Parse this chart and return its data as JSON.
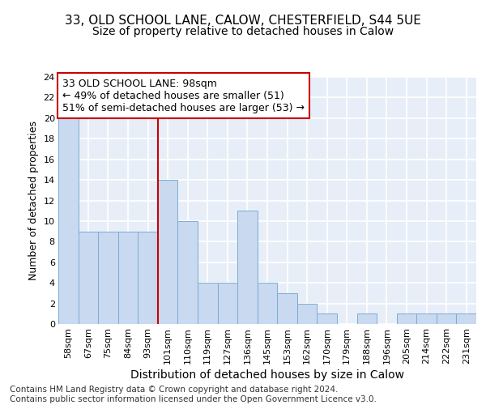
{
  "title1": "33, OLD SCHOOL LANE, CALOW, CHESTERFIELD, S44 5UE",
  "title2": "Size of property relative to detached houses in Calow",
  "xlabel": "Distribution of detached houses by size in Calow",
  "ylabel": "Number of detached properties",
  "categories": [
    "58sqm",
    "67sqm",
    "75sqm",
    "84sqm",
    "93sqm",
    "101sqm",
    "110sqm",
    "119sqm",
    "127sqm",
    "136sqm",
    "145sqm",
    "153sqm",
    "162sqm",
    "170sqm",
    "179sqm",
    "188sqm",
    "196sqm",
    "205sqm",
    "214sqm",
    "222sqm",
    "231sqm"
  ],
  "values": [
    20,
    9,
    9,
    9,
    9,
    14,
    10,
    4,
    4,
    11,
    4,
    3,
    2,
    1,
    0,
    1,
    0,
    1,
    1,
    1,
    1
  ],
  "bar_color": "#c8d9f0",
  "bar_edge_color": "#7aadd4",
  "vline_x_idx": 5,
  "vline_color": "#cc0000",
  "annotation_text": "33 OLD SCHOOL LANE: 98sqm\n← 49% of detached houses are smaller (51)\n51% of semi-detached houses are larger (53) →",
  "annotation_box_color": "#ffffff",
  "annotation_box_edge": "#cc0000",
  "ylim": [
    0,
    24
  ],
  "yticks": [
    0,
    2,
    4,
    6,
    8,
    10,
    12,
    14,
    16,
    18,
    20,
    22,
    24
  ],
  "background_color": "#e8eef8",
  "grid_color": "#ffffff",
  "footer": "Contains HM Land Registry data © Crown copyright and database right 2024.\nContains public sector information licensed under the Open Government Licence v3.0.",
  "title1_fontsize": 11,
  "title2_fontsize": 10,
  "xlabel_fontsize": 10,
  "ylabel_fontsize": 9,
  "tick_fontsize": 8,
  "annotation_fontsize": 9,
  "footer_fontsize": 7.5
}
